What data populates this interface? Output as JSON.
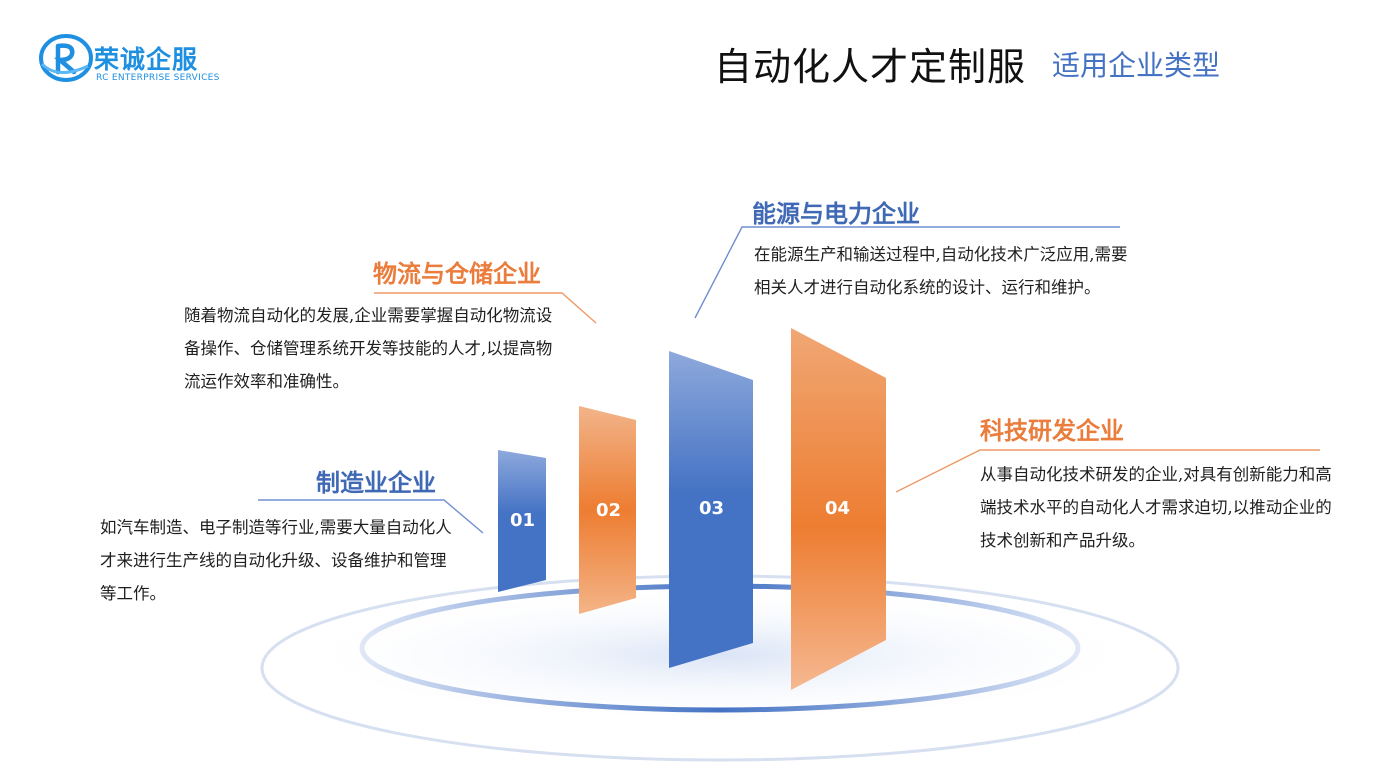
{
  "logo": {
    "name": "荣诚企服",
    "subtitle": "RC ENTERPRISE SERVICES",
    "icon": "rc-logo-icon"
  },
  "header": {
    "title": "自动化人才定制服",
    "subtitle": "适用企业类型"
  },
  "colors": {
    "blue": "#4472c4",
    "orange": "#ed7d31",
    "logo_blue": "#1e8fe1"
  },
  "categories": [
    {
      "number": "01",
      "title": "制造业企业",
      "description": "如汽车制造、电子制造等行业,需要大量自动化人才来进行生产线的自动化升级、设备维护和管理等工作。",
      "color": "blue"
    },
    {
      "number": "02",
      "title": "物流与仓储企业",
      "description": "随着物流自动化的发展,企业需要掌握自动化物流设备操作、仓储管理系统开发等技能的人才,以提高物流运作效率和准确性。",
      "color": "orange"
    },
    {
      "number": "03",
      "title": "能源与电力企业",
      "description": "在能源生产和输送过程中,自动化技术广泛应用,需要相关人才进行自动化系统的设计、运行和维护。",
      "color": "blue"
    },
    {
      "number": "04",
      "title": "科技研发企业",
      "description": "从事自动化技术研发的企业,对具有创新能力和高端技术水平的自动化人才需求迫切,以推动企业的技术创新和产品升级。",
      "color": "orange"
    }
  ]
}
